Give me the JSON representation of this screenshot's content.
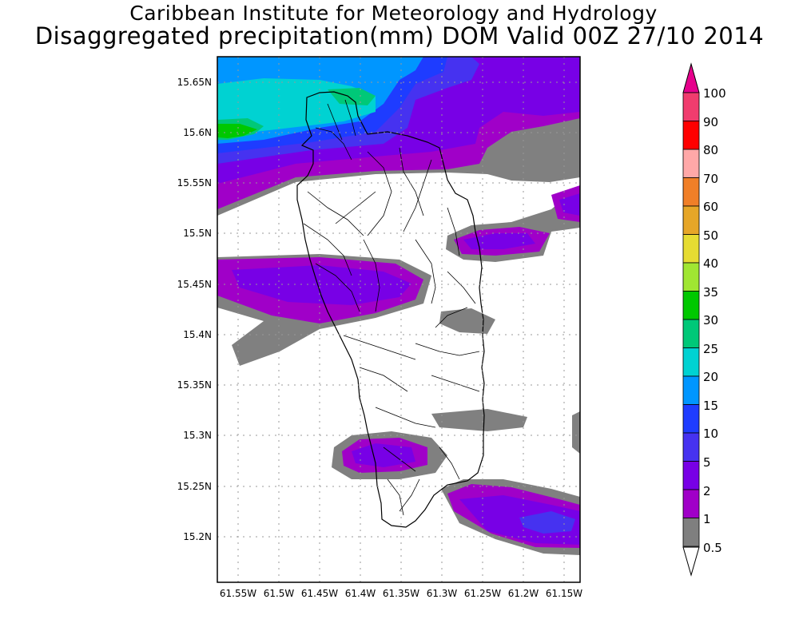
{
  "header": {
    "institute": "Caribbean Institute for Meteorology and Hydrology",
    "product": "Disaggregated precipitation(mm) DOM Valid 00Z 27/10 2014"
  },
  "map": {
    "lat_ticks": [
      "15.65N",
      "15.6N",
      "15.55N",
      "15.5N",
      "15.45N",
      "15.4N",
      "15.35N",
      "15.3N",
      "15.25N",
      "15.2N"
    ],
    "lon_ticks": [
      "61.55W",
      "61.5W",
      "61.45W",
      "61.4W",
      "61.35W",
      "61.3W",
      "61.25W",
      "61.2W",
      "61.15W"
    ]
  },
  "legend": {
    "levels": [
      "100",
      "90",
      "80",
      "70",
      "60",
      "50",
      "40",
      "35",
      "30",
      "25",
      "20",
      "15",
      "10",
      "5",
      "2",
      "1",
      "0.5"
    ],
    "colors": [
      "#f03c6e",
      "#ff0000",
      "#ffa8a8",
      "#f07f28",
      "#e6a628",
      "#e6dc32",
      "#a0e632",
      "#00c800",
      "#00c878",
      "#00d2d2",
      "#0096ff",
      "#1e3cff",
      "#4632f0",
      "#7800e6",
      "#a000c8",
      "#7f7f7f",
      "#ffffff"
    ],
    "top_cap_color": "#e6008c"
  }
}
